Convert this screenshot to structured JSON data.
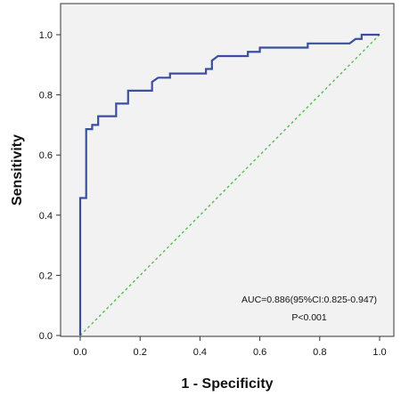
{
  "chart_data": {
    "type": "line",
    "xlabel": "1 - Specificity",
    "ylabel": "Sensitivity",
    "xlim": [
      0.0,
      1.0
    ],
    "ylim": [
      0.0,
      1.0
    ],
    "xticks": [
      "0.0",
      "0.2",
      "0.4",
      "0.6",
      "0.8",
      "1.0"
    ],
    "yticks": [
      "0.0",
      "0.2",
      "0.4",
      "0.6",
      "0.8",
      "1.0"
    ],
    "grid": false,
    "background_color": "#f2f2f2",
    "series": [
      {
        "style": "solid",
        "color": "#3b4fa0",
        "points": [
          [
            0.0,
            0.0
          ],
          [
            0.0,
            0.457
          ],
          [
            0.02,
            0.457
          ],
          [
            0.02,
            0.686
          ],
          [
            0.04,
            0.686
          ],
          [
            0.04,
            0.7
          ],
          [
            0.06,
            0.7
          ],
          [
            0.06,
            0.729
          ],
          [
            0.12,
            0.729
          ],
          [
            0.12,
            0.771
          ],
          [
            0.16,
            0.771
          ],
          [
            0.16,
            0.814
          ],
          [
            0.24,
            0.814
          ],
          [
            0.24,
            0.843
          ],
          [
            0.26,
            0.857
          ],
          [
            0.3,
            0.857
          ],
          [
            0.3,
            0.871
          ],
          [
            0.42,
            0.871
          ],
          [
            0.42,
            0.886
          ],
          [
            0.44,
            0.886
          ],
          [
            0.44,
            0.914
          ],
          [
            0.46,
            0.929
          ],
          [
            0.56,
            0.929
          ],
          [
            0.56,
            0.943
          ],
          [
            0.6,
            0.943
          ],
          [
            0.6,
            0.957
          ],
          [
            0.76,
            0.957
          ],
          [
            0.76,
            0.971
          ],
          [
            0.9,
            0.971
          ],
          [
            0.92,
            0.986
          ],
          [
            0.94,
            0.986
          ],
          [
            0.94,
            1.0
          ],
          [
            1.0,
            1.0
          ]
        ]
      },
      {
        "style": "dashed",
        "color": "#5cbf5c",
        "points": [
          [
            0.0,
            0.0
          ],
          [
            1.0,
            1.0
          ]
        ]
      }
    ],
    "annotations": [
      {
        "id": "auc",
        "text": "AUC=0.886(95%CI:0.825-0.947)",
        "x": 0.765,
        "y": 0.11
      },
      {
        "id": "p",
        "text": "P<0.001",
        "x": 0.765,
        "y": 0.05
      }
    ]
  }
}
